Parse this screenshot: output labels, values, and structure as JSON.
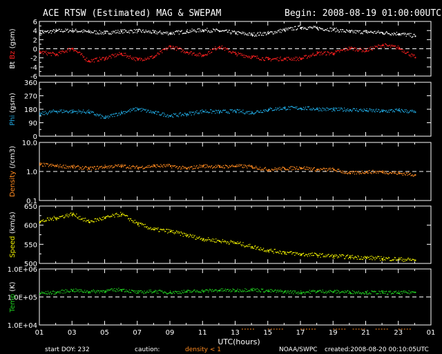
{
  "header": {
    "title": "ACE RTSW (Estimated) MAG & SWEPAM",
    "begin": "Begin: 2008-08-19 01:00:00UTC"
  },
  "footer": {
    "start_doy": "start DOY: 232",
    "caution": "caution:",
    "density_note": "density < 1",
    "source": "NOAA/SWPC",
    "created": "created:2008-08-20 00:10:05UTC"
  },
  "colors": {
    "background": "#000000",
    "axes": "#ffffff",
    "bt": "#ffffff",
    "bz": "#ff2020",
    "phi": "#20a8e0",
    "density": "#ff8a20",
    "speed": "#f0f000",
    "temp": "#20d020",
    "caution": "#ff8a20"
  },
  "chart_data": [
    {
      "type": "scatter",
      "panel": "mag",
      "ylabel_parts": [
        {
          "text": "Bt",
          "color": "#ffffff"
        },
        {
          "text": "Bz",
          "color": "#ff2020"
        },
        {
          "text": "(gsm)",
          "color": "#ffffff"
        }
      ],
      "ylim": [
        -6,
        6
      ],
      "yticks": [
        6,
        4,
        2,
        0,
        -2,
        -4,
        -6
      ],
      "ytick_labels": [
        "6",
        "4",
        "2",
        "0",
        "-2",
        "-4",
        "-6"
      ],
      "yscale": "linear",
      "reference_line": 0,
      "x_hours_utc": [
        1,
        2,
        3,
        4,
        5,
        6,
        7,
        8,
        9,
        10,
        11,
        12,
        13,
        14,
        15,
        16,
        17,
        18,
        19,
        20,
        21,
        22,
        23,
        24
      ],
      "series": [
        {
          "name": "Bt",
          "color": "#ffffff",
          "values": [
            3.6,
            4.0,
            4.1,
            3.8,
            3.6,
            3.9,
            4.0,
            3.7,
            3.5,
            3.9,
            4.2,
            4.0,
            3.6,
            3.2,
            3.5,
            4.2,
            4.8,
            4.6,
            4.3,
            3.8,
            3.8,
            3.6,
            3.4,
            2.9
          ]
        },
        {
          "name": "Bz",
          "color": "#ff2020",
          "values": [
            -0.6,
            -1.2,
            0.2,
            -2.6,
            -2.0,
            -1.0,
            -2.3,
            -1.7,
            0.6,
            -0.6,
            -1.4,
            0.6,
            -1.0,
            -1.7,
            -2.2,
            -2.1,
            -2.1,
            -0.9,
            -0.9,
            0.2,
            -0.3,
            0.9,
            0.3,
            -1.8
          ]
        }
      ]
    },
    {
      "type": "scatter",
      "panel": "phi",
      "ylabel_parts": [
        {
          "text": "Phi",
          "color": "#20a8e0"
        },
        {
          "text": "(gsm)",
          "color": "#ffffff"
        }
      ],
      "ylim": [
        0,
        360
      ],
      "yticks": [
        360,
        270,
        180,
        90,
        0
      ],
      "ytick_labels": [
        "360",
        "270",
        "180",
        "90",
        "0"
      ],
      "yscale": "linear",
      "x_hours_utc": [
        1,
        2,
        3,
        4,
        5,
        6,
        7,
        8,
        9,
        10,
        11,
        12,
        13,
        14,
        15,
        16,
        17,
        18,
        19,
        20,
        21,
        22,
        23,
        24
      ],
      "series": [
        {
          "name": "Phi",
          "color": "#20a8e0",
          "values": [
            150,
            170,
            168,
            165,
            125,
            160,
            185,
            160,
            140,
            150,
            170,
            165,
            170,
            160,
            180,
            190,
            190,
            185,
            180,
            180,
            175,
            170,
            175,
            165
          ]
        }
      ]
    },
    {
      "type": "scatter",
      "panel": "density",
      "ylabel_parts": [
        {
          "text": "Density",
          "color": "#ff8a20"
        },
        {
          "text": "(/cm3)",
          "color": "#ffffff"
        }
      ],
      "ylim": [
        0.1,
        10.0
      ],
      "yticks": [
        10.0,
        1.0,
        0.1
      ],
      "ytick_labels": [
        "10.0",
        "1.0",
        "0.1"
      ],
      "yscale": "log",
      "reference_line": 1.0,
      "x_hours_utc": [
        1,
        2,
        3,
        4,
        5,
        6,
        7,
        8,
        9,
        10,
        11,
        12,
        13,
        14,
        15,
        16,
        17,
        18,
        19,
        20,
        21,
        22,
        23,
        24
      ],
      "series": [
        {
          "name": "Density",
          "color": "#ff8a20",
          "values": [
            1.8,
            1.6,
            1.5,
            1.3,
            1.5,
            1.6,
            1.4,
            1.6,
            1.6,
            1.3,
            1.6,
            1.5,
            1.6,
            1.5,
            1.2,
            1.3,
            1.4,
            1.2,
            1.2,
            0.9,
            1.0,
            1.0,
            0.9,
            0.8
          ]
        }
      ]
    },
    {
      "type": "scatter",
      "panel": "speed",
      "ylabel_parts": [
        {
          "text": "Speed",
          "color": "#f0f000"
        },
        {
          "text": "(km/s)",
          "color": "#ffffff"
        }
      ],
      "ylim": [
        500,
        650
      ],
      "yticks": [
        650,
        600,
        550,
        500
      ],
      "ytick_labels": [
        "650",
        "600",
        "550",
        "500"
      ],
      "yscale": "linear",
      "x_hours_utc": [
        1,
        2,
        3,
        4,
        5,
        6,
        7,
        8,
        9,
        10,
        11,
        12,
        13,
        14,
        15,
        16,
        17,
        18,
        19,
        20,
        21,
        22,
        23,
        24
      ],
      "series": [
        {
          "name": "Speed",
          "color": "#f0f000",
          "values": [
            610,
            620,
            630,
            610,
            620,
            630,
            605,
            590,
            585,
            575,
            565,
            560,
            555,
            545,
            535,
            530,
            525,
            523,
            520,
            518,
            516,
            514,
            512,
            510
          ]
        }
      ]
    },
    {
      "type": "scatter",
      "panel": "temp",
      "ylabel_parts": [
        {
          "text": "Temp",
          "color": "#20d020"
        },
        {
          "text": "(K)",
          "color": "#ffffff"
        }
      ],
      "ylim": [
        10000,
        1000000
      ],
      "yticks": [
        1000000,
        100000,
        10000
      ],
      "ytick_labels": [
        "1.0E+06",
        "1.0E+05",
        "1.0E+04"
      ],
      "yscale": "log",
      "reference_line": 100000,
      "x_hours_utc": [
        1,
        2,
        3,
        4,
        5,
        6,
        7,
        8,
        9,
        10,
        11,
        12,
        13,
        14,
        15,
        16,
        17,
        18,
        19,
        20,
        21,
        22,
        23,
        24
      ],
      "series": [
        {
          "name": "Temp",
          "color": "#20d020",
          "values": [
            140000,
            150000,
            180000,
            160000,
            170000,
            190000,
            150000,
            165000,
            150000,
            160000,
            170000,
            180000,
            175000,
            190000,
            170000,
            160000,
            150000,
            165000,
            160000,
            155000,
            150000,
            150000,
            145000,
            155000
          ]
        }
      ]
    }
  ],
  "x_axis": {
    "label": "UTC(hours)",
    "range": [
      1,
      25
    ],
    "tick_labels": [
      "01",
      "03",
      "05",
      "07",
      "09",
      "11",
      "13",
      "15",
      "17",
      "19",
      "21",
      "23",
      "01"
    ],
    "tick_hours": [
      1,
      3,
      5,
      7,
      9,
      11,
      13,
      15,
      17,
      19,
      21,
      23,
      25
    ]
  },
  "caution_intervals_hours": [
    [
      13.4,
      14.2
    ],
    [
      15.0,
      16.0
    ],
    [
      17.0,
      18.0
    ],
    [
      19.0,
      19.8
    ],
    [
      20.2,
      21.0
    ],
    [
      21.6,
      22.4
    ],
    [
      23.0,
      23.8
    ]
  ]
}
